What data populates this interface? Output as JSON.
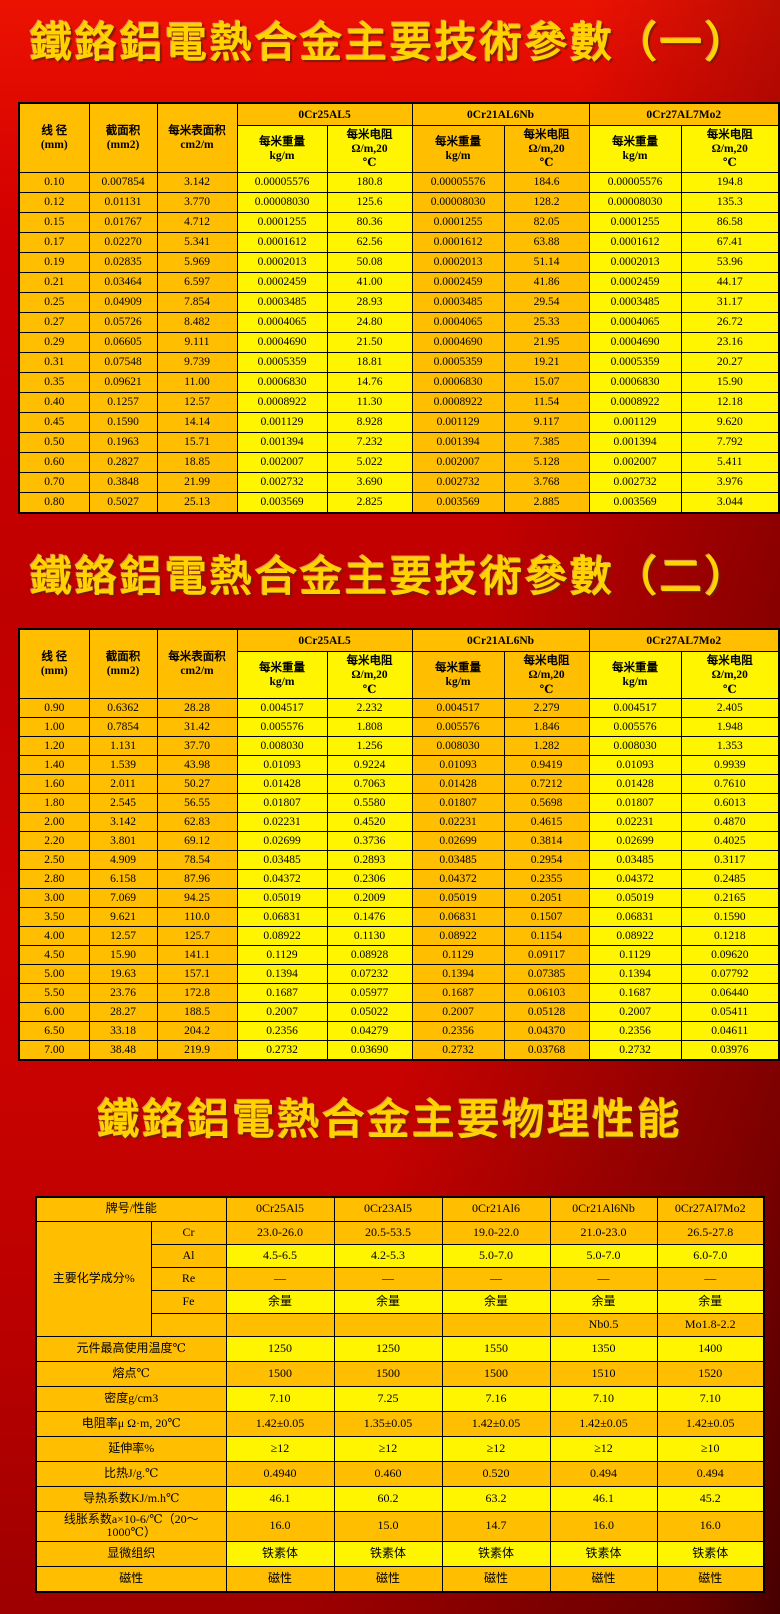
{
  "titles": {
    "params1": "鐵鉻鋁電熱合金主要技術參數（一）",
    "params2": "鐵鉻鋁電熱合金主要技術參數（二）",
    "physical": "鐵鉻鋁電熱合金主要物理性能"
  },
  "colors": {
    "page_red": "#c40000",
    "cell_orange": "#ffbf00",
    "cell_yellow": "#fff500",
    "title_gold": "#ffd200"
  },
  "params_header": {
    "diameter": "线 径",
    "diameter_unit": "(mm)",
    "section_area": "截面积",
    "section_area_unit": "(mm2)",
    "surface_area": "每米表面积",
    "surface_area_unit": "cm2/m",
    "alloys": [
      "0Cr25AL5",
      "0Cr21AL6Nb",
      "0Cr27AL7Mo2"
    ],
    "weight": "每米重量",
    "weight_unit": "kg/m",
    "resistance": "每米电阻",
    "resistance_unit": "Ω/m,20",
    "resistance_unit_deg": "℃"
  },
  "params1_rows": [
    [
      "0.10",
      "0.007854",
      "3.142",
      "0.00005576",
      "180.8",
      "0.00005576",
      "184.6",
      "0.00005576",
      "194.8"
    ],
    [
      "0.12",
      "0.01131",
      "3.770",
      "0.00008030",
      "125.6",
      "0.00008030",
      "128.2",
      "0.00008030",
      "135.3"
    ],
    [
      "0.15",
      "0.01767",
      "4.712",
      "0.0001255",
      "80.36",
      "0.0001255",
      "82.05",
      "0.0001255",
      "86.58"
    ],
    [
      "0.17",
      "0.02270",
      "5.341",
      "0.0001612",
      "62.56",
      "0.0001612",
      "63.88",
      "0.0001612",
      "67.41"
    ],
    [
      "0.19",
      "0.02835",
      "5.969",
      "0.0002013",
      "50.08",
      "0.0002013",
      "51.14",
      "0.0002013",
      "53.96"
    ],
    [
      "0.21",
      "0.03464",
      "6.597",
      "0.0002459",
      "41.00",
      "0.0002459",
      "41.86",
      "0.0002459",
      "44.17"
    ],
    [
      "0.25",
      "0.04909",
      "7.854",
      "0.0003485",
      "28.93",
      "0.0003485",
      "29.54",
      "0.0003485",
      "31.17"
    ],
    [
      "0.27",
      "0.05726",
      "8.482",
      "0.0004065",
      "24.80",
      "0.0004065",
      "25.33",
      "0.0004065",
      "26.72"
    ],
    [
      "0.29",
      "0.06605",
      "9.111",
      "0.0004690",
      "21.50",
      "0.0004690",
      "21.95",
      "0.0004690",
      "23.16"
    ],
    [
      "0.31",
      "0.07548",
      "9.739",
      "0.0005359",
      "18.81",
      "0.0005359",
      "19.21",
      "0.0005359",
      "20.27"
    ],
    [
      "0.35",
      "0.09621",
      "11.00",
      "0.0006830",
      "14.76",
      "0.0006830",
      "15.07",
      "0.0006830",
      "15.90"
    ],
    [
      "0.40",
      "0.1257",
      "12.57",
      "0.0008922",
      "11.30",
      "0.0008922",
      "11.54",
      "0.0008922",
      "12.18"
    ],
    [
      "0.45",
      "0.1590",
      "14.14",
      "0.001129",
      "8.928",
      "0.001129",
      "9.117",
      "0.001129",
      "9.620"
    ],
    [
      "0.50",
      "0.1963",
      "15.71",
      "0.001394",
      "7.232",
      "0.001394",
      "7.385",
      "0.001394",
      "7.792"
    ],
    [
      "0.60",
      "0.2827",
      "18.85",
      "0.002007",
      "5.022",
      "0.002007",
      "5.128",
      "0.002007",
      "5.411"
    ],
    [
      "0.70",
      "0.3848",
      "21.99",
      "0.002732",
      "3.690",
      "0.002732",
      "3.768",
      "0.002732",
      "3.976"
    ],
    [
      "0.80",
      "0.5027",
      "25.13",
      "0.003569",
      "2.825",
      "0.003569",
      "2.885",
      "0.003569",
      "3.044"
    ]
  ],
  "params2_rows": [
    [
      "0.90",
      "0.6362",
      "28.28",
      "0.004517",
      "2.232",
      "0.004517",
      "2.279",
      "0.004517",
      "2.405"
    ],
    [
      "1.00",
      "0.7854",
      "31.42",
      "0.005576",
      "1.808",
      "0.005576",
      "1.846",
      "0.005576",
      "1.948"
    ],
    [
      "1.20",
      "1.131",
      "37.70",
      "0.008030",
      "1.256",
      "0.008030",
      "1.282",
      "0.008030",
      "1.353"
    ],
    [
      "1.40",
      "1.539",
      "43.98",
      "0.01093",
      "0.9224",
      "0.01093",
      "0.9419",
      "0.01093",
      "0.9939"
    ],
    [
      "1.60",
      "2.011",
      "50.27",
      "0.01428",
      "0.7063",
      "0.01428",
      "0.7212",
      "0.01428",
      "0.7610"
    ],
    [
      "1.80",
      "2.545",
      "56.55",
      "0.01807",
      "0.5580",
      "0.01807",
      "0.5698",
      "0.01807",
      "0.6013"
    ],
    [
      "2.00",
      "3.142",
      "62.83",
      "0.02231",
      "0.4520",
      "0.02231",
      "0.4615",
      "0.02231",
      "0.4870"
    ],
    [
      "2.20",
      "3.801",
      "69.12",
      "0.02699",
      "0.3736",
      "0.02699",
      "0.3814",
      "0.02699",
      "0.4025"
    ],
    [
      "2.50",
      "4.909",
      "78.54",
      "0.03485",
      "0.2893",
      "0.03485",
      "0.2954",
      "0.03485",
      "0.3117"
    ],
    [
      "2.80",
      "6.158",
      "87.96",
      "0.04372",
      "0.2306",
      "0.04372",
      "0.2355",
      "0.04372",
      "0.2485"
    ],
    [
      "3.00",
      "7.069",
      "94.25",
      "0.05019",
      "0.2009",
      "0.05019",
      "0.2051",
      "0.05019",
      "0.2165"
    ],
    [
      "3.50",
      "9.621",
      "110.0",
      "0.06831",
      "0.1476",
      "0.06831",
      "0.1507",
      "0.06831",
      "0.1590"
    ],
    [
      "4.00",
      "12.57",
      "125.7",
      "0.08922",
      "0.1130",
      "0.08922",
      "0.1154",
      "0.08922",
      "0.1218"
    ],
    [
      "4.50",
      "15.90",
      "141.1",
      "0.1129",
      "0.08928",
      "0.1129",
      "0.09117",
      "0.1129",
      "0.09620"
    ],
    [
      "5.00",
      "19.63",
      "157.1",
      "0.1394",
      "0.07232",
      "0.1394",
      "0.07385",
      "0.1394",
      "0.07792"
    ],
    [
      "5.50",
      "23.76",
      "172.8",
      "0.1687",
      "0.05977",
      "0.1687",
      "0.06103",
      "0.1687",
      "0.06440"
    ],
    [
      "6.00",
      "28.27",
      "188.5",
      "0.2007",
      "0.05022",
      "0.2007",
      "0.05128",
      "0.2007",
      "0.05411"
    ],
    [
      "6.50",
      "33.18",
      "204.2",
      "0.2356",
      "0.04279",
      "0.2356",
      "0.04370",
      "0.2356",
      "0.04611"
    ],
    [
      "7.00",
      "38.48",
      "219.9",
      "0.2732",
      "0.03690",
      "0.2732",
      "0.03768",
      "0.2732",
      "0.03976"
    ]
  ],
  "physical": {
    "corner_label": "牌号/性能",
    "columns": [
      "0Cr25Al5",
      "0Cr23Al5",
      "0Cr21Al6",
      "0Cr21Al6Nb",
      "0Cr27Al7Mo2"
    ],
    "rows": [
      {
        "group": "主要化学成分%",
        "span": 5,
        "sub": "Cr",
        "values": [
          "23.0-26.0",
          "20.5-53.5",
          "19.0-22.0",
          "21.0-23.0",
          "26.5-27.8"
        ]
      },
      {
        "sub": "Al",
        "values": [
          "4.5-6.5",
          "4.2-5.3",
          "5.0-7.0",
          "5.0-7.0",
          "6.0-7.0"
        ]
      },
      {
        "sub": "Re",
        "values": [
          "—",
          "—",
          "—",
          "—",
          "—"
        ]
      },
      {
        "sub": "Fe",
        "values": [
          "余量",
          "余量",
          "余量",
          "余量",
          "余量"
        ]
      },
      {
        "sub": "",
        "values": [
          "",
          "",
          "",
          "Nb0.5",
          "Mo1.8-2.2"
        ]
      },
      {
        "label": "元件最高使用温度℃",
        "values": [
          "1250",
          "1250",
          "1550",
          "1350",
          "1400"
        ]
      },
      {
        "label": "熔点℃",
        "values": [
          "1500",
          "1500",
          "1500",
          "1510",
          "1520"
        ]
      },
      {
        "label": "密度g/cm3",
        "values": [
          "7.10",
          "7.25",
          "7.16",
          "7.10",
          "7.10"
        ]
      },
      {
        "label": "电阻率μ Ω·m, 20℃",
        "values": [
          "1.42±0.05",
          "1.35±0.05",
          "1.42±0.05",
          "1.42±0.05",
          "1.42±0.05"
        ]
      },
      {
        "label": "延伸率%",
        "values": [
          "≥12",
          "≥12",
          "≥12",
          "≥12",
          "≥10"
        ]
      },
      {
        "label": "比热J/g.℃",
        "values": [
          "0.4940",
          "0.460",
          "0.520",
          "0.494",
          "0.494"
        ]
      },
      {
        "label": "导热系数KJ/m.h℃",
        "values": [
          "46.1",
          "60.2",
          "63.2",
          "46.1",
          "45.2"
        ]
      },
      {
        "label": "线胀系数a×10-6/℃（20～1000℃）",
        "values": [
          "16.0",
          "15.0",
          "14.7",
          "16.0",
          "16.0"
        ]
      },
      {
        "label": "显微组织",
        "values": [
          "铁素体",
          "铁素体",
          "铁素体",
          "铁素体",
          "铁素体"
        ]
      },
      {
        "label": "磁性",
        "values": [
          "磁性",
          "磁性",
          "磁性",
          "磁性",
          "磁性"
        ]
      }
    ]
  }
}
